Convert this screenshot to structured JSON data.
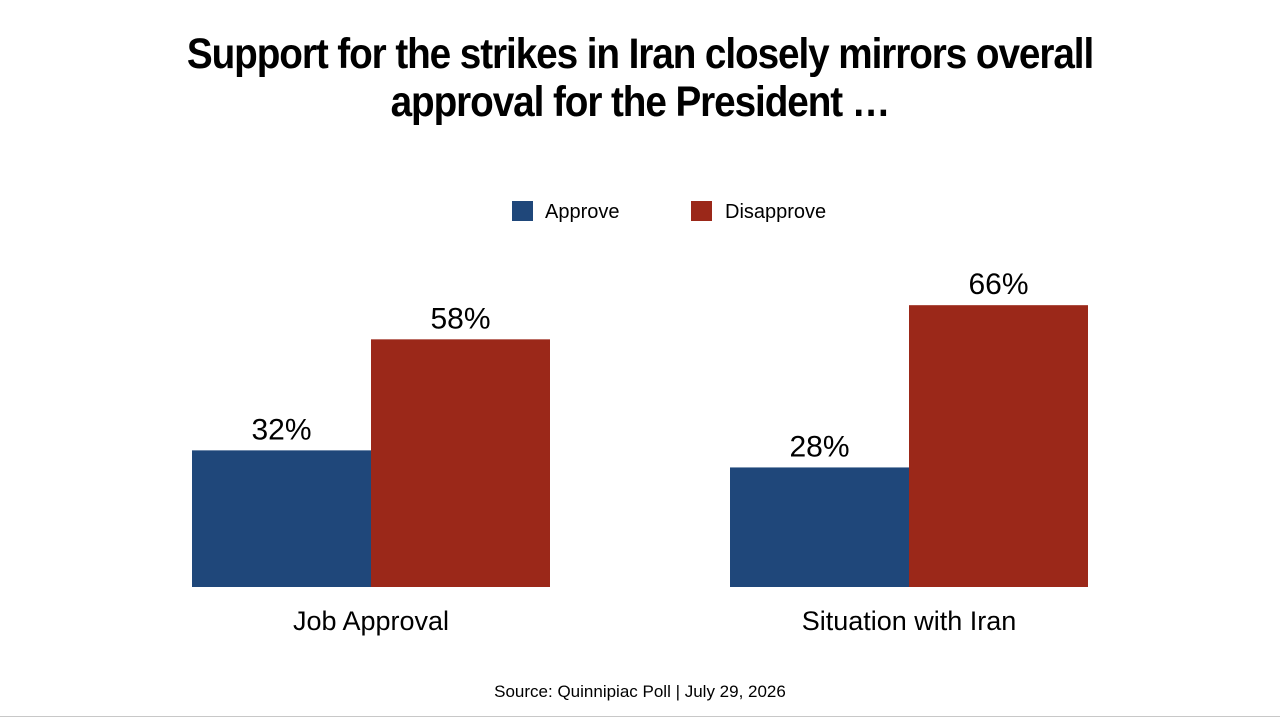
{
  "slide": {
    "title_line1": "Support for the strikes in Iran closely mirrors overall",
    "title_line2": "approval for the President …",
    "source": "Source: Quinnipiac Poll | July 29, 2026"
  },
  "chart_data": {
    "type": "bar",
    "title": "",
    "categories": [
      "Job Approval",
      "Situation with Iran"
    ],
    "series": [
      {
        "name": "Approve",
        "values": [
          32,
          28
        ],
        "labels": [
          "32%",
          "28%"
        ],
        "color": "#1f477a"
      },
      {
        "name": "Disapprove",
        "values": [
          58,
          66
        ],
        "labels": [
          "58%",
          "66%"
        ],
        "color": "#9b2819"
      }
    ],
    "ylim": [
      0,
      70
    ],
    "grid": false,
    "legend": "top-center",
    "xlabel": "",
    "ylabel": ""
  }
}
